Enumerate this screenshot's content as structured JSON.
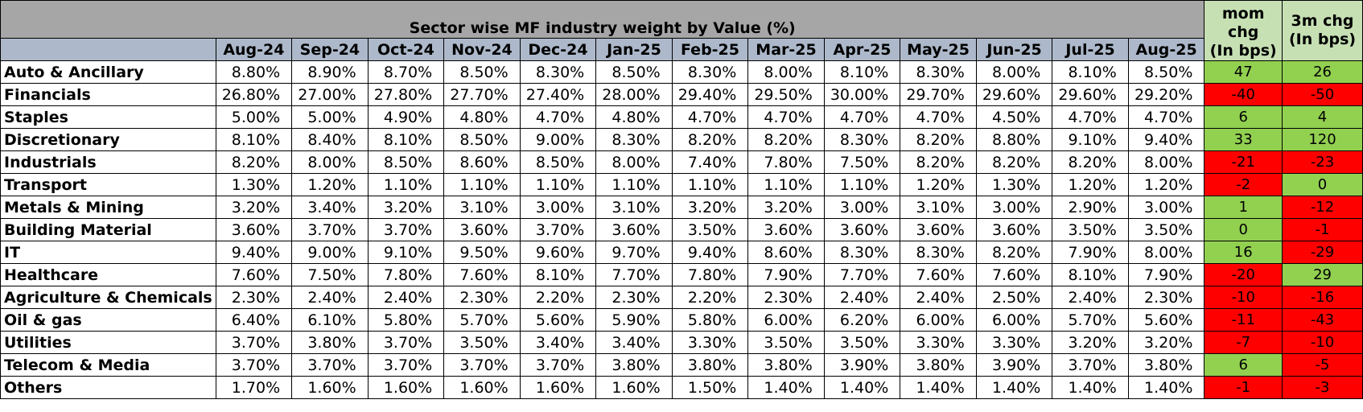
{
  "chart_data": {
    "type": "table",
    "title": "Sector wise MF industry weight by Value (%)",
    "months": [
      "Aug-24",
      "Sep-24",
      "Oct-24",
      "Nov-24",
      "Dec-24",
      "Jan-25",
      "Feb-25",
      "Mar-25",
      "Apr-25",
      "May-25",
      "Jun-25",
      "Jul-25",
      "Aug-25"
    ],
    "change_headers": {
      "mom": [
        "mom",
        "chg",
        "(In bps)"
      ],
      "three_m": [
        "3m chg",
        "(In bps)"
      ]
    },
    "colors": {
      "positive": "#92d050",
      "negative": "#ff0000",
      "month_header": "#adb9ca",
      "title_band": "#a6a6a6",
      "change_header": "#c6e0b4"
    },
    "rows": [
      {
        "sector": "Auto & Ancillary",
        "values": [
          "8.80%",
          "8.90%",
          "8.70%",
          "8.50%",
          "8.30%",
          "8.50%",
          "8.30%",
          "8.00%",
          "8.10%",
          "8.30%",
          "8.00%",
          "8.10%",
          "8.50%"
        ],
        "mom": 47,
        "three_m": 26
      },
      {
        "sector": "Financials",
        "values": [
          "26.80%",
          "27.00%",
          "27.80%",
          "27.70%",
          "27.40%",
          "28.00%",
          "29.40%",
          "29.50%",
          "30.00%",
          "29.70%",
          "29.60%",
          "29.60%",
          "29.20%"
        ],
        "mom": -40,
        "three_m": -50
      },
      {
        "sector": "Staples",
        "values": [
          "5.00%",
          "5.00%",
          "4.90%",
          "4.80%",
          "4.70%",
          "4.80%",
          "4.70%",
          "4.70%",
          "4.70%",
          "4.70%",
          "4.50%",
          "4.70%",
          "4.70%"
        ],
        "mom": 6,
        "three_m": 4
      },
      {
        "sector": "Discretionary",
        "values": [
          "8.10%",
          "8.40%",
          "8.10%",
          "8.50%",
          "9.00%",
          "8.30%",
          "8.20%",
          "8.20%",
          "8.30%",
          "8.20%",
          "8.80%",
          "9.10%",
          "9.40%"
        ],
        "mom": 33,
        "three_m": 120
      },
      {
        "sector": "Industrials",
        "values": [
          "8.20%",
          "8.00%",
          "8.50%",
          "8.60%",
          "8.50%",
          "8.00%",
          "7.40%",
          "7.80%",
          "7.50%",
          "8.20%",
          "8.20%",
          "8.20%",
          "8.00%"
        ],
        "mom": -21,
        "three_m": -23
      },
      {
        "sector": "Transport",
        "values": [
          "1.30%",
          "1.20%",
          "1.10%",
          "1.10%",
          "1.10%",
          "1.10%",
          "1.10%",
          "1.10%",
          "1.10%",
          "1.20%",
          "1.30%",
          "1.20%",
          "1.20%"
        ],
        "mom": -2,
        "three_m": 0
      },
      {
        "sector": "Metals & Mining",
        "values": [
          "3.20%",
          "3.40%",
          "3.20%",
          "3.10%",
          "3.00%",
          "3.10%",
          "3.20%",
          "3.20%",
          "3.00%",
          "3.10%",
          "3.00%",
          "2.90%",
          "3.00%"
        ],
        "mom": 1,
        "three_m": -12
      },
      {
        "sector": "Building Material",
        "values": [
          "3.60%",
          "3.70%",
          "3.70%",
          "3.60%",
          "3.70%",
          "3.60%",
          "3.50%",
          "3.60%",
          "3.60%",
          "3.60%",
          "3.60%",
          "3.50%",
          "3.50%"
        ],
        "mom": 0,
        "three_m": -1
      },
      {
        "sector": "IT",
        "values": [
          "9.40%",
          "9.00%",
          "9.10%",
          "9.50%",
          "9.60%",
          "9.70%",
          "9.40%",
          "8.60%",
          "8.30%",
          "8.30%",
          "8.20%",
          "7.90%",
          "8.00%"
        ],
        "mom": 16,
        "three_m": -29
      },
      {
        "sector": "Healthcare",
        "values": [
          "7.60%",
          "7.50%",
          "7.80%",
          "7.60%",
          "8.10%",
          "7.70%",
          "7.80%",
          "7.90%",
          "7.70%",
          "7.60%",
          "7.60%",
          "8.10%",
          "7.90%"
        ],
        "mom": -20,
        "three_m": 29
      },
      {
        "sector": "Agriculture & Chemicals",
        "values": [
          "2.30%",
          "2.40%",
          "2.40%",
          "2.30%",
          "2.20%",
          "2.30%",
          "2.20%",
          "2.30%",
          "2.40%",
          "2.40%",
          "2.50%",
          "2.40%",
          "2.30%"
        ],
        "mom": -10,
        "three_m": -16
      },
      {
        "sector": "Oil & gas",
        "values": [
          "6.40%",
          "6.10%",
          "5.80%",
          "5.70%",
          "5.60%",
          "5.90%",
          "5.80%",
          "6.00%",
          "6.20%",
          "6.00%",
          "6.00%",
          "5.70%",
          "5.60%"
        ],
        "mom": -11,
        "three_m": -43
      },
      {
        "sector": "Utilities",
        "values": [
          "3.70%",
          "3.80%",
          "3.70%",
          "3.50%",
          "3.40%",
          "3.40%",
          "3.30%",
          "3.50%",
          "3.50%",
          "3.30%",
          "3.30%",
          "3.20%",
          "3.20%"
        ],
        "mom": -7,
        "three_m": -10
      },
      {
        "sector": "Telecom & Media",
        "values": [
          "3.70%",
          "3.70%",
          "3.70%",
          "3.70%",
          "3.70%",
          "3.80%",
          "3.80%",
          "3.80%",
          "3.90%",
          "3.80%",
          "3.90%",
          "3.70%",
          "3.80%"
        ],
        "mom": 6,
        "three_m": -5
      },
      {
        "sector": "Others",
        "values": [
          "1.70%",
          "1.60%",
          "1.60%",
          "1.60%",
          "1.60%",
          "1.60%",
          "1.50%",
          "1.40%",
          "1.40%",
          "1.40%",
          "1.40%",
          "1.40%",
          "1.40%"
        ],
        "mom": -1,
        "three_m": -3
      }
    ]
  }
}
